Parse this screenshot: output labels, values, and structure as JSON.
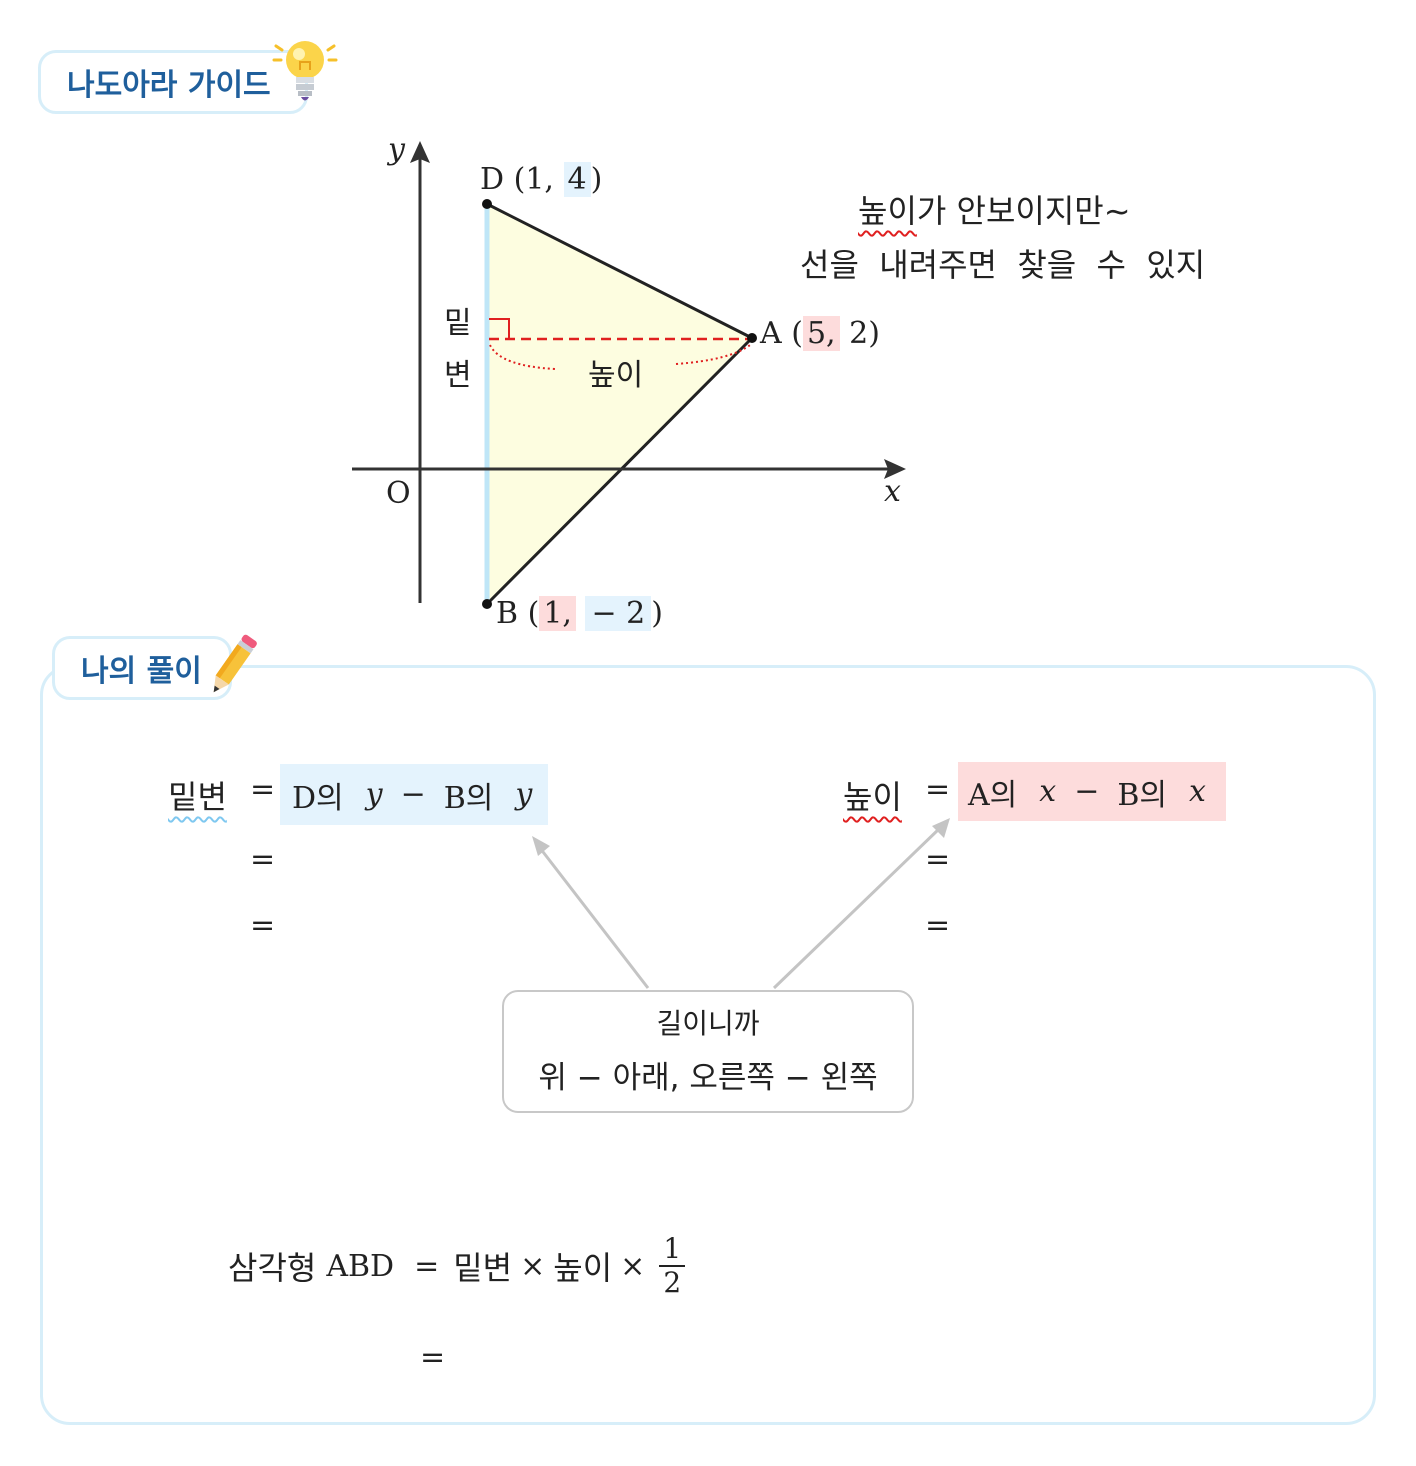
{
  "guide": {
    "label": "나도아라 가이드",
    "icon": "lightbulb-icon"
  },
  "graph": {
    "axis_x": "x",
    "axis_y": "y",
    "origin": "O",
    "point_d": {
      "name": "D",
      "open": "(",
      "x": "1,",
      "y": "4",
      "close": ")"
    },
    "point_a": {
      "name": "A",
      "open": "(",
      "x": "5,",
      "y": "2",
      "close": ")"
    },
    "point_b": {
      "name": "B",
      "open": "(",
      "x": "1,",
      "y": "− 2",
      "close": ")"
    },
    "base_label_1": "밑",
    "base_label_2": "변",
    "height_label": "높이",
    "note_line1_word": "높이",
    "note_line1_rest": "가  안보이지만~",
    "note_line2": "선을  내려주면  찾을  수  있지",
    "colors": {
      "triangle_fill": "#fdfde0",
      "base_line": "#bfe6f7",
      "height_line": "#e02020"
    }
  },
  "solution": {
    "title": "나의 풀이",
    "icon": "pencil-icon",
    "base": {
      "label": "밑변",
      "eq": "=",
      "p1": "D의",
      "v1": "y",
      "minus": "−",
      "p2": "B의",
      "v2": "y",
      "eq2": "=",
      "eq3": "="
    },
    "height": {
      "label": "높이",
      "eq": "=",
      "p1": "A의",
      "v1": "x",
      "minus": "−",
      "p2": "B의",
      "v2": "x",
      "eq2": "=",
      "eq3": "="
    },
    "hint": {
      "line1": "길이니까",
      "line2": "위 − 아래, 오른쪽 − 왼쪽"
    },
    "area": {
      "label": "삼각형",
      "name": "ABD",
      "eq": "=",
      "t1": "밑변",
      "times1": "×",
      "t2": "높이",
      "times2": "×",
      "num": "1",
      "den": "2",
      "eq2": "="
    }
  }
}
